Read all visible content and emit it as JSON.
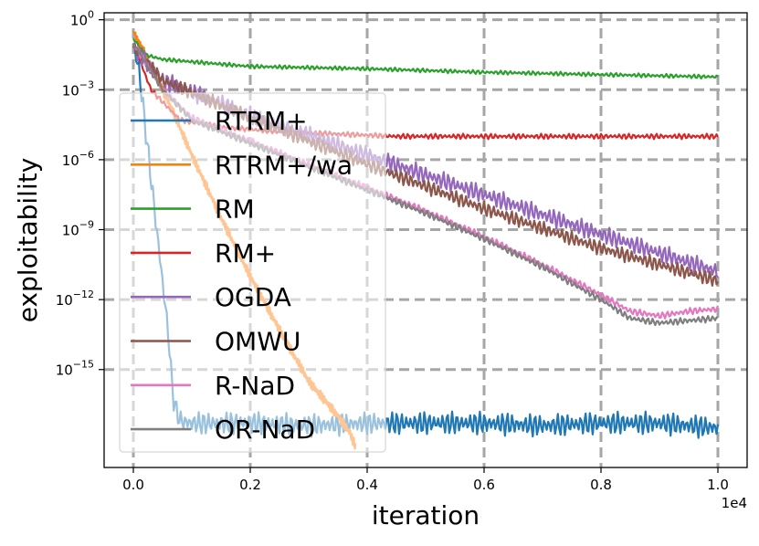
{
  "chart_data": {
    "type": "line",
    "title": "",
    "xlabel": "iteration",
    "ylabel": "exploitability",
    "x_offset_label": "1e4",
    "xlim": [
      -0.05,
      1.05
    ],
    "ylim_log10": [
      -19.2,
      0.3
    ],
    "xscale": "linear",
    "yscale": "log",
    "x_ticks": [
      {
        "value": 0.0,
        "label": "0.0"
      },
      {
        "value": 0.2,
        "label": "0.2"
      },
      {
        "value": 0.4,
        "label": "0.4"
      },
      {
        "value": 0.6,
        "label": "0.6"
      },
      {
        "value": 0.8,
        "label": "0.8"
      },
      {
        "value": 1.0,
        "label": "1.0"
      }
    ],
    "y_ticks": [
      {
        "exp": 0,
        "base": "10",
        "power": "0"
      },
      {
        "exp": -3,
        "base": "10",
        "power": "−3"
      },
      {
        "exp": -6,
        "base": "10",
        "power": "−6"
      },
      {
        "exp": -9,
        "base": "10",
        "power": "−9"
      },
      {
        "exp": -12,
        "base": "10",
        "power": "−12"
      },
      {
        "exp": -15,
        "base": "10",
        "power": "−15"
      }
    ],
    "grid": true,
    "legend_position": "left",
    "series": [
      {
        "name": "RTRM+",
        "color": "#1f77b4",
        "x": [
          0.0,
          0.01,
          0.02,
          0.04,
          0.06,
          0.065,
          0.07,
          0.08,
          0.1,
          0.2,
          0.3,
          0.4,
          0.5,
          0.6,
          0.7,
          0.8,
          0.9,
          1.0
        ],
        "log10_y": [
          -1.0,
          -2.2,
          -4.5,
          -9.0,
          -13.5,
          -15.3,
          -16.5,
          -17.2,
          -17.3,
          -17.3,
          -17.4,
          -17.3,
          -17.3,
          -17.3,
          -17.4,
          -17.3,
          -17.3,
          -17.5
        ],
        "noise": 0.35
      },
      {
        "name": "RTRM+/wa",
        "color": "#ff7f0e",
        "x": [
          0.0,
          0.03,
          0.06,
          0.1,
          0.15,
          0.2,
          0.25,
          0.3,
          0.35,
          0.37,
          0.38
        ],
        "log10_y": [
          -0.5,
          -2.0,
          -3.5,
          -5.8,
          -8.5,
          -11.0,
          -13.3,
          -15.5,
          -17.0,
          -17.7,
          -18.3
        ],
        "noise": 0.15
      },
      {
        "name": "RM",
        "color": "#2ca02c",
        "x": [
          0.0,
          0.02,
          0.05,
          0.1,
          0.2,
          0.4,
          0.6,
          0.8,
          1.0
        ],
        "log10_y": [
          -0.8,
          -1.5,
          -1.7,
          -1.8,
          -2.0,
          -2.1,
          -2.25,
          -2.35,
          -2.45
        ],
        "noise": 0.06
      },
      {
        "name": "RM+",
        "color": "#d62728",
        "x": [
          0.0,
          0.03,
          0.08,
          0.15,
          0.25,
          0.35,
          0.45,
          0.6,
          0.8,
          1.0
        ],
        "log10_y": [
          -1.0,
          -3.0,
          -4.3,
          -4.6,
          -4.8,
          -4.9,
          -5.0,
          -5.0,
          -5.0,
          -5.0
        ],
        "noise": 0.08
      },
      {
        "name": "OGDA",
        "color": "#9467bd",
        "x": [
          0.0,
          0.05,
          0.2,
          0.4,
          0.6,
          0.8,
          1.0
        ],
        "log10_y": [
          -1.2,
          -2.6,
          -4.1,
          -5.8,
          -7.5,
          -9.2,
          -10.8
        ],
        "noise": 0.28
      },
      {
        "name": "OMWU",
        "color": "#8c564b",
        "x": [
          0.0,
          0.05,
          0.2,
          0.4,
          0.6,
          0.8,
          1.0
        ],
        "log10_y": [
          -1.2,
          -2.6,
          -4.2,
          -6.2,
          -8.1,
          -9.8,
          -11.2
        ],
        "noise": 0.22
      },
      {
        "name": "R-NaD",
        "color": "#e377c2",
        "x": [
          0.0,
          0.05,
          0.1,
          0.2,
          0.3,
          0.4,
          0.5,
          0.6,
          0.7,
          0.8,
          0.85,
          0.9,
          0.95,
          1.0
        ],
        "log10_y": [
          -1.0,
          -3.0,
          -4.2,
          -5.2,
          -6.2,
          -7.2,
          -8.2,
          -9.3,
          -10.5,
          -11.8,
          -12.5,
          -12.7,
          -12.5,
          -12.4
        ],
        "noise": 0.1
      },
      {
        "name": "OR-NaD",
        "color": "#7f7f7f",
        "x": [
          0.0,
          0.05,
          0.1,
          0.2,
          0.3,
          0.4,
          0.5,
          0.6,
          0.7,
          0.8,
          0.85,
          0.9,
          0.95,
          1.0
        ],
        "log10_y": [
          -1.0,
          -3.0,
          -4.3,
          -5.3,
          -6.3,
          -7.3,
          -8.3,
          -9.4,
          -10.6,
          -12.0,
          -12.8,
          -13.0,
          -12.9,
          -12.8
        ],
        "noise": 0.1
      }
    ]
  }
}
